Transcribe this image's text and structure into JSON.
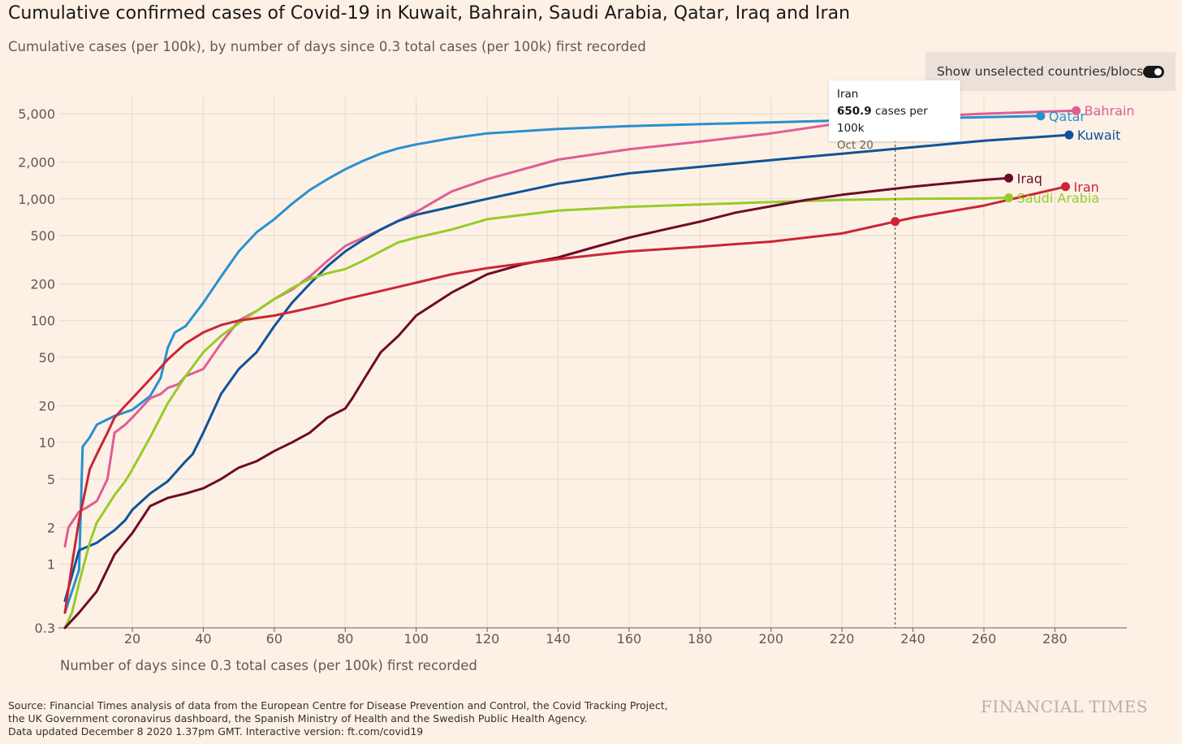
{
  "header": {
    "title": "Cumulative confirmed cases of Covid-19 in Kuwait, Bahrain, Saudi Arabia, Qatar, Iraq and Iran",
    "subtitle": "Cumulative cases (per 100k), by number of days since 0.3 total cases (per 100k) first recorded"
  },
  "toggle": {
    "label": "Show unselected countries/blocs",
    "state": "on"
  },
  "tooltip": {
    "country": "Iran",
    "value": "650.9",
    "unit": " cases per 100k",
    "date": "Oct 20",
    "day": 235
  },
  "footer": {
    "source_lines": [
      "Source: Financial Times analysis of data from the European Centre for Disease Prevention and Control, the Covid Tracking Project,",
      "the UK Government coronavirus dashboard, the Spanish Ministry of Health and the Swedish Public Health Agency.",
      "Data updated December 8 2020 1.37pm GMT. Interactive version: ft.com/covid19"
    ],
    "brand": "FINANCIAL TIMES"
  },
  "chart_data": {
    "type": "line",
    "title": "Cumulative confirmed cases of Covid-19 in Kuwait, Bahrain, Saudi Arabia, Qatar, Iraq and Iran",
    "xlabel": "Number of days since 0.3 total cases (per 100k) first recorded",
    "ylabel": "",
    "yscale": "log",
    "xlim": [
      1,
      300
    ],
    "ylim": [
      0.3,
      7000
    ],
    "xticks": [
      "20",
      "40",
      "60",
      "80",
      "100",
      "120",
      "140",
      "160",
      "180",
      "200",
      "220",
      "240",
      "260",
      "280"
    ],
    "yticks": [
      {
        "value": 0.3,
        "label": "0.3"
      },
      {
        "value": 1,
        "label": "1"
      },
      {
        "value": 2,
        "label": "2"
      },
      {
        "value": 5,
        "label": "5"
      },
      {
        "value": 10,
        "label": "10"
      },
      {
        "value": 20,
        "label": "20"
      },
      {
        "value": 50,
        "label": "50"
      },
      {
        "value": 100,
        "label": "100"
      },
      {
        "value": 200,
        "label": "200"
      },
      {
        "value": 500,
        "label": "500"
      },
      {
        "value": 1000,
        "label": "1,000"
      },
      {
        "value": 2000,
        "label": "2,000"
      },
      {
        "value": 5000,
        "label": "5,000"
      }
    ],
    "grid": true,
    "series": [
      {
        "name": "Qatar",
        "color": "#2890cf",
        "x": [
          1,
          5,
          6,
          8,
          10,
          15,
          20,
          25,
          28,
          30,
          32,
          35,
          40,
          45,
          50,
          55,
          60,
          65,
          70,
          75,
          80,
          85,
          90,
          95,
          100,
          110,
          120,
          140,
          160,
          180,
          200,
          220,
          240,
          260,
          276
        ],
        "y": [
          0.4,
          0.9,
          9.2,
          11,
          14,
          16.5,
          18.5,
          24,
          34,
          60,
          80,
          90,
          140,
          230,
          370,
          530,
          680,
          910,
          1180,
          1450,
          1750,
          2050,
          2350,
          2600,
          2800,
          3150,
          3450,
          3750,
          3950,
          4100,
          4250,
          4400,
          4550,
          4680,
          4790
        ]
      },
      {
        "name": "Bahrain",
        "color": "#e05d94",
        "x": [
          1,
          2,
          5,
          7,
          10,
          13,
          15,
          18,
          20,
          25,
          28,
          30,
          33,
          35,
          40,
          45,
          50,
          55,
          60,
          65,
          70,
          75,
          80,
          85,
          90,
          95,
          100,
          110,
          120,
          140,
          160,
          180,
          200,
          220,
          240,
          260,
          286
        ],
        "y": [
          1.4,
          2,
          2.7,
          2.9,
          3.3,
          5,
          12,
          14,
          16,
          23,
          25,
          28,
          30,
          35,
          40,
          65,
          100,
          120,
          150,
          180,
          230,
          310,
          410,
          480,
          560,
          660,
          780,
          1150,
          1450,
          2100,
          2550,
          2950,
          3450,
          4200,
          4700,
          5000,
          5300
        ]
      },
      {
        "name": "Kuwait",
        "color": "#0f5499",
        "x": [
          1,
          5,
          10,
          15,
          18,
          20,
          25,
          30,
          35,
          37,
          40,
          45,
          50,
          55,
          60,
          65,
          70,
          75,
          80,
          85,
          90,
          95,
          100,
          110,
          120,
          140,
          160,
          180,
          200,
          220,
          240,
          260,
          284
        ],
        "y": [
          0.5,
          1.3,
          1.5,
          1.9,
          2.3,
          2.8,
          3.8,
          4.8,
          7,
          8,
          12,
          25,
          40,
          55,
          90,
          140,
          200,
          280,
          370,
          460,
          560,
          660,
          740,
          860,
          1000,
          1330,
          1620,
          1830,
          2080,
          2350,
          2650,
          3000,
          3350
        ]
      },
      {
        "name": "Saudi Arabia",
        "color": "#96cc28",
        "x": [
          1,
          3,
          5,
          8,
          10,
          13,
          15,
          18,
          20,
          25,
          30,
          35,
          40,
          45,
          50,
          55,
          60,
          65,
          70,
          75,
          80,
          85,
          90,
          95,
          100,
          110,
          120,
          140,
          160,
          180,
          200,
          220,
          240,
          260,
          267
        ],
        "y": [
          0.3,
          0.4,
          0.7,
          1.5,
          2.2,
          3,
          3.7,
          4.8,
          6,
          11,
          21,
          35,
          55,
          75,
          95,
          120,
          150,
          185,
          220,
          245,
          265,
          310,
          370,
          440,
          480,
          560,
          680,
          800,
          860,
          900,
          940,
          980,
          1000,
          1010,
          1020
        ]
      },
      {
        "name": "Iraq",
        "color": "#6e0b28",
        "x": [
          1,
          5,
          10,
          15,
          20,
          25,
          30,
          35,
          40,
          45,
          50,
          55,
          60,
          65,
          70,
          75,
          80,
          82,
          85,
          90,
          95,
          100,
          110,
          120,
          130,
          140,
          150,
          160,
          170,
          180,
          190,
          200,
          210,
          220,
          240,
          260,
          267
        ],
        "y": [
          0.3,
          0.4,
          0.6,
          1.2,
          1.8,
          3,
          3.5,
          3.8,
          4.2,
          5,
          6.2,
          7,
          8.5,
          10,
          12,
          16,
          19,
          23,
          32,
          55,
          75,
          110,
          170,
          240,
          290,
          330,
          400,
          480,
          560,
          650,
          770,
          870,
          980,
          1080,
          1260,
          1430,
          1480
        ]
      },
      {
        "name": "Iran",
        "color": "#cc2535",
        "x": [
          1,
          3,
          5,
          8,
          10,
          13,
          15,
          18,
          20,
          25,
          30,
          35,
          40,
          45,
          50,
          55,
          60,
          65,
          70,
          75,
          80,
          90,
          100,
          110,
          120,
          140,
          160,
          180,
          200,
          220,
          235,
          240,
          260,
          283
        ],
        "y": [
          0.4,
          1,
          2.3,
          6,
          8,
          12,
          16,
          20,
          23,
          33,
          48,
          65,
          80,
          92,
          100,
          105,
          110,
          118,
          127,
          137,
          150,
          175,
          205,
          240,
          270,
          320,
          370,
          405,
          445,
          520,
          650.9,
          700,
          880,
          1260
        ]
      }
    ],
    "highlight": {
      "series": "Iran",
      "x": 235,
      "y": 650.9
    }
  }
}
